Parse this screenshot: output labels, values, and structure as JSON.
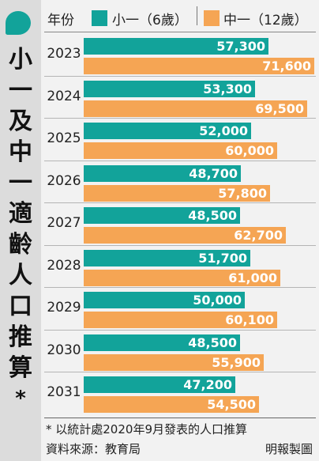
{
  "title_chars": [
    "小",
    "一",
    "及",
    "中",
    "一",
    "適",
    "齡",
    "人",
    "口",
    "推",
    "算",
    "*"
  ],
  "legend": {
    "year_header": "年份",
    "p1_label": "小一（6歲）",
    "s1_label": "中一（12歲）"
  },
  "colors": {
    "p1": "#12a39a",
    "s1": "#f5a554",
    "accent_bubble": "#12a39a"
  },
  "chart_data": {
    "type": "bar",
    "orientation": "horizontal",
    "title": "小一及中一適齡人口推算*",
    "categories": [
      "2023",
      "2024",
      "2025",
      "2026",
      "2027",
      "2028",
      "2029",
      "2030",
      "2031"
    ],
    "series": [
      {
        "name": "小一（6歲）",
        "values": [
          57300,
          53300,
          52000,
          48700,
          48500,
          51700,
          50000,
          48500,
          47200
        ],
        "labels": [
          "57,300",
          "53,300",
          "52,000",
          "48,700",
          "48,500",
          "51,700",
          "50,000",
          "48,500",
          "47,200"
        ]
      },
      {
        "name": "中一（12歲）",
        "values": [
          71600,
          69500,
          60000,
          57800,
          62700,
          61000,
          60100,
          55900,
          54500
        ],
        "labels": [
          "71,600",
          "69,500",
          "60,000",
          "57,800",
          "62,700",
          "61,000",
          "60,100",
          "55,900",
          "54,500"
        ]
      }
    ],
    "xlim": [
      0,
      71600
    ],
    "grid": false,
    "legend_position": "top"
  },
  "footer": {
    "note": "* 以統計處2020年9月發表的人口推算",
    "source": "資料來源：教育局",
    "credit": "明報製圖"
  }
}
